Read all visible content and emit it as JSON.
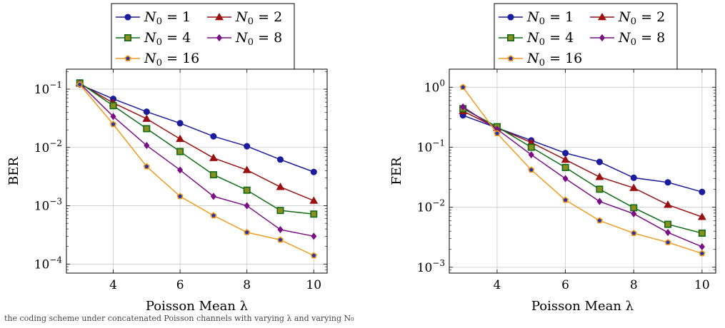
{
  "caption": "the coding scheme under concatenated Poisson channels with varying λ and varying N₀",
  "chart_data": [
    {
      "type": "line",
      "ylabel": "BER",
      "xlabel": "Poisson Mean λ",
      "xlim": [
        2.6,
        10.4
      ],
      "ylim": [
        7e-05,
        0.22
      ],
      "yscale": "log",
      "grid": true,
      "legend": "top-center",
      "x_ticks": [
        4,
        6,
        8,
        10
      ],
      "x_tick_labels": [
        "4",
        "6",
        "8",
        "10"
      ],
      "y_ticks": [
        0.1,
        0.01,
        0.001,
        0.0001
      ],
      "y_tick_labels": [
        {
          "base": "10",
          "exp": "−1"
        },
        {
          "base": "10",
          "exp": "−2"
        },
        {
          "base": "10",
          "exp": "−3"
        },
        {
          "base": "10",
          "exp": "−4"
        }
      ],
      "x": [
        3,
        4,
        5,
        6,
        7,
        8,
        9,
        10
      ],
      "series": [
        {
          "name": "N0 = 1",
          "sub": "0",
          "num": "1",
          "color": "#1c1c9e",
          "fill": "#1c1c9e",
          "marker": "circle",
          "values": [
            0.12,
            0.068,
            0.041,
            0.026,
            0.0155,
            0.0105,
            0.0062,
            0.0038
          ]
        },
        {
          "name": "N0 = 2",
          "sub": "0",
          "num": "2",
          "color": "#9b1111",
          "fill": "#9b1111",
          "marker": "triangle",
          "values": [
            0.125,
            0.058,
            0.031,
            0.014,
            0.0066,
            0.0041,
            0.0021,
            0.00122
          ]
        },
        {
          "name": "N0 = 4",
          "sub": "0",
          "num": "4",
          "color": "#0f6b15",
          "fill": "#8b8f20",
          "marker": "square",
          "values": [
            0.128,
            0.052,
            0.021,
            0.0085,
            0.0034,
            0.00185,
            0.00083,
            0.00072
          ]
        },
        {
          "name": "N0 = 8",
          "sub": "0",
          "num": "8",
          "color": "#7a0f85",
          "fill": "#7a0f85",
          "marker": "diamond",
          "values": [
            0.125,
            0.034,
            0.0108,
            0.0041,
            0.00145,
            0.001,
            0.00039,
            0.0003
          ]
        },
        {
          "name": "N0 = 16",
          "sub": "0",
          "num": "16",
          "color": "#f29a1e",
          "fill": "#2233aa",
          "marker": "pentagon",
          "values": [
            0.12,
            0.025,
            0.0047,
            0.00145,
            0.00068,
            0.00035,
            0.00026,
            0.00014
          ]
        }
      ]
    },
    {
      "type": "line",
      "ylabel": "FER",
      "xlabel": "Poisson Mean λ",
      "xlim": [
        2.6,
        10.4
      ],
      "ylim": [
        0.0008,
        2.0
      ],
      "yscale": "log",
      "grid": true,
      "legend": "top-center",
      "x_ticks": [
        4,
        6,
        8,
        10
      ],
      "x_tick_labels": [
        "4",
        "6",
        "8",
        "10"
      ],
      "y_ticks": [
        1,
        0.1,
        0.01,
        0.001
      ],
      "y_tick_labels": [
        {
          "base": "10",
          "exp": "0"
        },
        {
          "base": "10",
          "exp": "−1"
        },
        {
          "base": "10",
          "exp": "−2"
        },
        {
          "base": "10",
          "exp": "−3"
        }
      ],
      "x": [
        3,
        4,
        5,
        6,
        7,
        8,
        9,
        10
      ],
      "series": [
        {
          "name": "N0 = 1",
          "sub": "0",
          "num": "1",
          "color": "#1c1c9e",
          "fill": "#1c1c9e",
          "marker": "circle",
          "values": [
            0.34,
            0.21,
            0.13,
            0.08,
            0.057,
            0.031,
            0.026,
            0.018
          ]
        },
        {
          "name": "N0 = 2",
          "sub": "0",
          "num": "2",
          "color": "#9b1111",
          "fill": "#9b1111",
          "marker": "triangle",
          "values": [
            0.4,
            0.21,
            0.12,
            0.062,
            0.032,
            0.021,
            0.011,
            0.0069
          ]
        },
        {
          "name": "N0 = 4",
          "sub": "0",
          "num": "4",
          "color": "#0f6b15",
          "fill": "#8b8f20",
          "marker": "square",
          "values": [
            0.44,
            0.22,
            0.1,
            0.046,
            0.02,
            0.0098,
            0.0052,
            0.0037
          ]
        },
        {
          "name": "N0 = 8",
          "sub": "0",
          "num": "8",
          "color": "#7a0f85",
          "fill": "#7a0f85",
          "marker": "diamond",
          "values": [
            0.47,
            0.2,
            0.075,
            0.03,
            0.0125,
            0.0078,
            0.0038,
            0.0022
          ]
        },
        {
          "name": "N0 = 16",
          "sub": "0",
          "num": "16",
          "color": "#f29a1e",
          "fill": "#2233aa",
          "marker": "pentagon",
          "values": [
            1.0,
            0.17,
            0.042,
            0.0132,
            0.006,
            0.0037,
            0.0026,
            0.0017
          ]
        }
      ]
    }
  ]
}
